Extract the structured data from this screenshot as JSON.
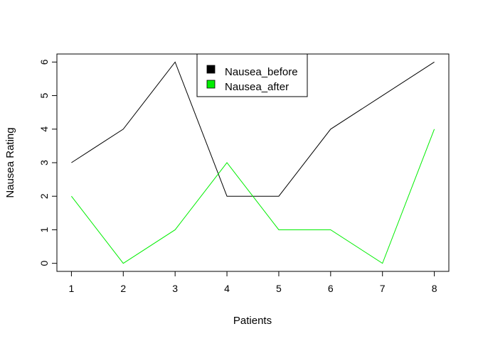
{
  "chart_data": {
    "type": "line",
    "title": "",
    "xlabel": "Patients",
    "ylabel": "Nausea Rating",
    "x": [
      1,
      2,
      3,
      4,
      5,
      6,
      7,
      8
    ],
    "xticks": [
      "1",
      "2",
      "3",
      "4",
      "5",
      "6",
      "7",
      "8"
    ],
    "yticks": [
      "0",
      "1",
      "2",
      "3",
      "4",
      "5",
      "6"
    ],
    "xlim": [
      0.72,
      8.28
    ],
    "ylim": [
      -0.24,
      6.24
    ],
    "grid": false,
    "legend_position": "top-center",
    "series": [
      {
        "name": "Nausea_before",
        "color": "#000000",
        "values": [
          3,
          4,
          6,
          2,
          2,
          4,
          5,
          6
        ]
      },
      {
        "name": "Nausea_after",
        "color": "#00ee00",
        "values": [
          2,
          0,
          1,
          3,
          1,
          1,
          0,
          4
        ]
      }
    ]
  }
}
